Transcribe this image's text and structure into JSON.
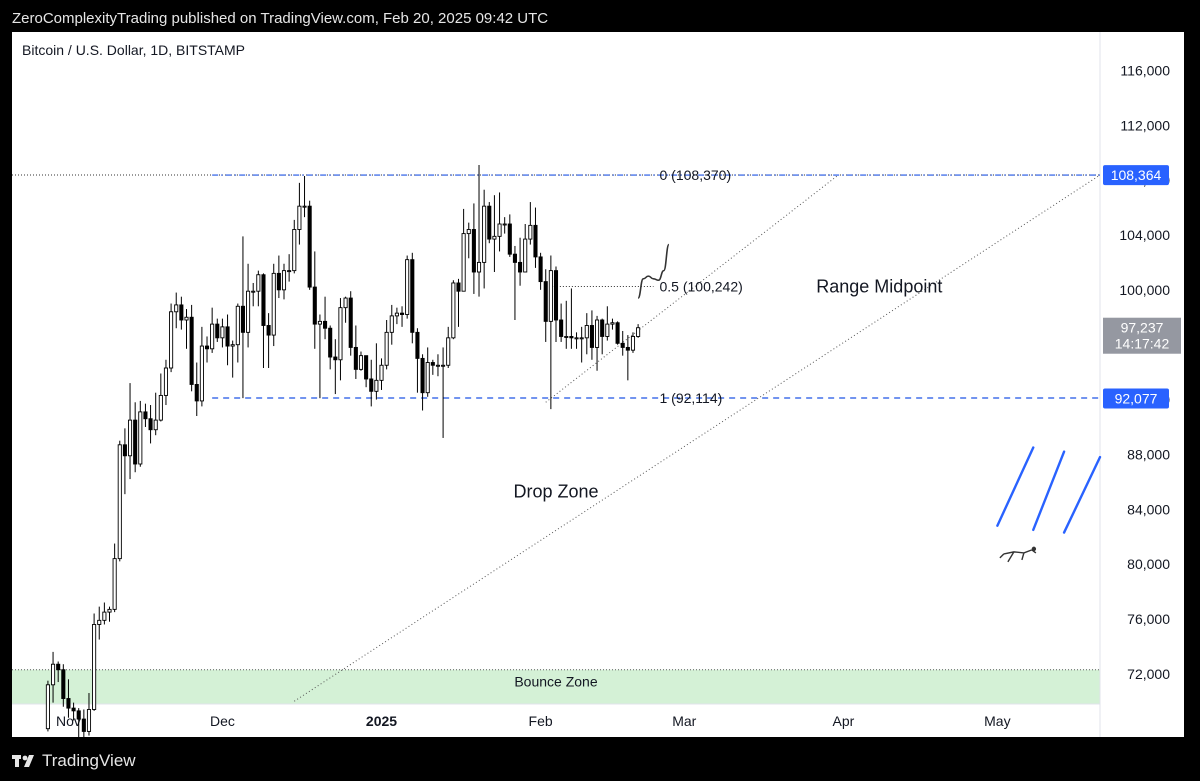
{
  "header": {
    "published_text": "ZeroComplexityTrading published on TradingView.com, Feb 20, 2025 09:42 UTC"
  },
  "footer": {
    "brand": "TradingView"
  },
  "colors": {
    "candle_up_fill": "#ffffff",
    "candle_down_fill": "#000000",
    "fib_line": "#1e53e5",
    "bounce_zone_fill": "#d4f1d6",
    "current_price_badge": "#9598a1",
    "level_badge": "#2962ff"
  },
  "chart_data": {
    "type": "candlestick",
    "title": "Bitcoin / U.S. Dollar, 1D, BITSTAMP",
    "y_axis": {
      "ticks": [
        "116,000",
        "112,000",
        "108,000",
        "104,000",
        "100,000",
        "96,000",
        "92,000",
        "88,000",
        "84,000",
        "80,000",
        "76,000",
        "72,000"
      ],
      "tick_values": [
        116000,
        112000,
        108000,
        104000,
        100000,
        96000,
        92000,
        88000,
        84000,
        80000,
        76000,
        72000
      ],
      "range": [
        69800,
        118800
      ]
    },
    "x_axis": {
      "ticks": [
        {
          "label": "Nov",
          "date": "2024-11-01",
          "bold": false
        },
        {
          "label": "Dec",
          "date": "2024-12-01",
          "bold": false
        },
        {
          "label": "2025",
          "date": "2025-01-01",
          "bold": true
        },
        {
          "label": "Feb",
          "date": "2025-02-01",
          "bold": false
        },
        {
          "label": "Mar",
          "date": "2025-03-01",
          "bold": false
        },
        {
          "label": "Apr",
          "date": "2025-04-01",
          "bold": false
        },
        {
          "label": "May",
          "date": "2025-05-01",
          "bold": false
        }
      ],
      "range": [
        "2024-10-21",
        "2025-05-21"
      ]
    },
    "candles": [
      {
        "d": "2024-10-28",
        "o": 68000,
        "h": 71500,
        "l": 67800,
        "c": 71200
      },
      {
        "d": "2024-10-29",
        "o": 71200,
        "h": 73600,
        "l": 69900,
        "c": 72700
      },
      {
        "d": "2024-10-30",
        "o": 72700,
        "h": 72900,
        "l": 71400,
        "c": 72300
      },
      {
        "d": "2024-10-31",
        "o": 72300,
        "h": 72700,
        "l": 69600,
        "c": 70200
      },
      {
        "d": "2024-11-01",
        "o": 70200,
        "h": 71600,
        "l": 68800,
        "c": 69500
      },
      {
        "d": "2024-11-02",
        "o": 69500,
        "h": 69900,
        "l": 68600,
        "c": 69300
      },
      {
        "d": "2024-11-03",
        "o": 69300,
        "h": 69500,
        "l": 66800,
        "c": 68700
      },
      {
        "d": "2024-11-04",
        "o": 68700,
        "h": 69400,
        "l": 66700,
        "c": 67800
      },
      {
        "d": "2024-11-05",
        "o": 67800,
        "h": 70600,
        "l": 67500,
        "c": 69400
      },
      {
        "d": "2024-11-06",
        "o": 69400,
        "h": 76400,
        "l": 69300,
        "c": 75600
      },
      {
        "d": "2024-11-07",
        "o": 75600,
        "h": 76900,
        "l": 74500,
        "c": 75900
      },
      {
        "d": "2024-11-08",
        "o": 75900,
        "h": 77200,
        "l": 75600,
        "c": 76500
      },
      {
        "d": "2024-11-09",
        "o": 76500,
        "h": 76900,
        "l": 75800,
        "c": 76700
      },
      {
        "d": "2024-11-10",
        "o": 76700,
        "h": 81500,
        "l": 76500,
        "c": 80400
      },
      {
        "d": "2024-11-11",
        "o": 80400,
        "h": 89000,
        "l": 80200,
        "c": 88700
      },
      {
        "d": "2024-11-12",
        "o": 88700,
        "h": 89900,
        "l": 85100,
        "c": 87900
      },
      {
        "d": "2024-11-13",
        "o": 87900,
        "h": 93200,
        "l": 86200,
        "c": 90500
      },
      {
        "d": "2024-11-14",
        "o": 90500,
        "h": 91800,
        "l": 86700,
        "c": 87300
      },
      {
        "d": "2024-11-15",
        "o": 87300,
        "h": 91900,
        "l": 87100,
        "c": 91100
      },
      {
        "d": "2024-11-16",
        "o": 91100,
        "h": 91700,
        "l": 90000,
        "c": 90600
      },
      {
        "d": "2024-11-17",
        "o": 90600,
        "h": 91600,
        "l": 88800,
        "c": 89800
      },
      {
        "d": "2024-11-18",
        "o": 89800,
        "h": 92500,
        "l": 89400,
        "c": 90500
      },
      {
        "d": "2024-11-19",
        "o": 90500,
        "h": 93900,
        "l": 90400,
        "c": 92300
      },
      {
        "d": "2024-11-20",
        "o": 92300,
        "h": 94900,
        "l": 91600,
        "c": 94300
      },
      {
        "d": "2024-11-21",
        "o": 94300,
        "h": 99000,
        "l": 94000,
        "c": 98400
      },
      {
        "d": "2024-11-22",
        "o": 98400,
        "h": 99800,
        "l": 97200,
        "c": 98900
      },
      {
        "d": "2024-11-23",
        "o": 98900,
        "h": 99500,
        "l": 97100,
        "c": 97800
      },
      {
        "d": "2024-11-24",
        "o": 97800,
        "h": 98600,
        "l": 95700,
        "c": 98000
      },
      {
        "d": "2024-11-25",
        "o": 98000,
        "h": 98900,
        "l": 92600,
        "c": 93100
      },
      {
        "d": "2024-11-26",
        "o": 93100,
        "h": 94700,
        "l": 90800,
        "c": 91900
      },
      {
        "d": "2024-11-27",
        "o": 91900,
        "h": 97300,
        "l": 91500,
        "c": 95900
      },
      {
        "d": "2024-11-28",
        "o": 95900,
        "h": 96600,
        "l": 94700,
        "c": 95700
      },
      {
        "d": "2024-11-29",
        "o": 95700,
        "h": 98700,
        "l": 95400,
        "c": 97500
      },
      {
        "d": "2024-11-30",
        "o": 97500,
        "h": 97900,
        "l": 96200,
        "c": 96500
      },
      {
        "d": "2024-12-01",
        "o": 96500,
        "h": 97900,
        "l": 95800,
        "c": 97300
      },
      {
        "d": "2024-12-02",
        "o": 97300,
        "h": 98200,
        "l": 94500,
        "c": 95900
      },
      {
        "d": "2024-12-03",
        "o": 95900,
        "h": 96300,
        "l": 93600,
        "c": 96000
      },
      {
        "d": "2024-12-04",
        "o": 96000,
        "h": 99000,
        "l": 94700,
        "c": 98800
      },
      {
        "d": "2024-12-05",
        "o": 98800,
        "h": 103900,
        "l": 92100,
        "c": 96900
      },
      {
        "d": "2024-12-06",
        "o": 96900,
        "h": 101900,
        "l": 95800,
        "c": 99900
      },
      {
        "d": "2024-12-07",
        "o": 99900,
        "h": 100500,
        "l": 98800,
        "c": 99900
      },
      {
        "d": "2024-12-08",
        "o": 99900,
        "h": 101400,
        "l": 98800,
        "c": 101100
      },
      {
        "d": "2024-12-09",
        "o": 101100,
        "h": 101200,
        "l": 94300,
        "c": 97400
      },
      {
        "d": "2024-12-10",
        "o": 97400,
        "h": 98300,
        "l": 94300,
        "c": 96700
      },
      {
        "d": "2024-12-11",
        "o": 96700,
        "h": 101900,
        "l": 95900,
        "c": 101200
      },
      {
        "d": "2024-12-12",
        "o": 101200,
        "h": 102500,
        "l": 99400,
        "c": 100000
      },
      {
        "d": "2024-12-13",
        "o": 100000,
        "h": 101900,
        "l": 99300,
        "c": 101400
      },
      {
        "d": "2024-12-14",
        "o": 101400,
        "h": 102600,
        "l": 100600,
        "c": 101400
      },
      {
        "d": "2024-12-15",
        "o": 101400,
        "h": 105100,
        "l": 101200,
        "c": 104400
      },
      {
        "d": "2024-12-16",
        "o": 104400,
        "h": 107800,
        "l": 103300,
        "c": 106100
      },
      {
        "d": "2024-12-17",
        "o": 106100,
        "h": 108300,
        "l": 105300,
        "c": 106100
      },
      {
        "d": "2024-12-18",
        "o": 106100,
        "h": 106500,
        "l": 100000,
        "c": 100200
      },
      {
        "d": "2024-12-19",
        "o": 100200,
        "h": 102800,
        "l": 95700,
        "c": 97500
      },
      {
        "d": "2024-12-20",
        "o": 97500,
        "h": 98200,
        "l": 92100,
        "c": 97700
      },
      {
        "d": "2024-12-21",
        "o": 97700,
        "h": 99500,
        "l": 96400,
        "c": 97200
      },
      {
        "d": "2024-12-22",
        "o": 97200,
        "h": 97400,
        "l": 94200,
        "c": 95100
      },
      {
        "d": "2024-12-23",
        "o": 95100,
        "h": 96400,
        "l": 92400,
        "c": 94900
      },
      {
        "d": "2024-12-24",
        "o": 94900,
        "h": 99400,
        "l": 93400,
        "c": 98700
      },
      {
        "d": "2024-12-25",
        "o": 98700,
        "h": 99500,
        "l": 97600,
        "c": 99400
      },
      {
        "d": "2024-12-26",
        "o": 99400,
        "h": 99900,
        "l": 95200,
        "c": 95800
      },
      {
        "d": "2024-12-27",
        "o": 95800,
        "h": 97400,
        "l": 93500,
        "c": 94200
      },
      {
        "d": "2024-12-28",
        "o": 94200,
        "h": 95500,
        "l": 94100,
        "c": 95200
      },
      {
        "d": "2024-12-29",
        "o": 95200,
        "h": 95200,
        "l": 92900,
        "c": 93500
      },
      {
        "d": "2024-12-30",
        "o": 93500,
        "h": 94900,
        "l": 91500,
        "c": 92600
      },
      {
        "d": "2024-12-31",
        "o": 92600,
        "h": 96100,
        "l": 92000,
        "c": 93400
      },
      {
        "d": "2025-01-01",
        "o": 93400,
        "h": 95000,
        "l": 92700,
        "c": 94500
      },
      {
        "d": "2025-01-02",
        "o": 94500,
        "h": 97800,
        "l": 94200,
        "c": 96900
      },
      {
        "d": "2025-01-03",
        "o": 96900,
        "h": 98900,
        "l": 96000,
        "c": 98100
      },
      {
        "d": "2025-01-04",
        "o": 98100,
        "h": 98700,
        "l": 97500,
        "c": 98300
      },
      {
        "d": "2025-01-05",
        "o": 98300,
        "h": 98800,
        "l": 97300,
        "c": 98200
      },
      {
        "d": "2025-01-06",
        "o": 98200,
        "h": 102500,
        "l": 97900,
        "c": 102200
      },
      {
        "d": "2025-01-07",
        "o": 102200,
        "h": 102700,
        "l": 96100,
        "c": 96900
      },
      {
        "d": "2025-01-08",
        "o": 96900,
        "h": 97200,
        "l": 92500,
        "c": 95000
      },
      {
        "d": "2025-01-09",
        "o": 95000,
        "h": 95300,
        "l": 91200,
        "c": 92500
      },
      {
        "d": "2025-01-10",
        "o": 92500,
        "h": 95800,
        "l": 92200,
        "c": 94700
      },
      {
        "d": "2025-01-11",
        "o": 94700,
        "h": 94900,
        "l": 93800,
        "c": 94500
      },
      {
        "d": "2025-01-12",
        "o": 94500,
        "h": 95300,
        "l": 93700,
        "c": 94500
      },
      {
        "d": "2025-01-13",
        "o": 94500,
        "h": 95800,
        "l": 89200,
        "c": 94500
      },
      {
        "d": "2025-01-14",
        "o": 94500,
        "h": 97300,
        "l": 94300,
        "c": 96500
      },
      {
        "d": "2025-01-15",
        "o": 96500,
        "h": 100700,
        "l": 96400,
        "c": 100500
      },
      {
        "d": "2025-01-16",
        "o": 100500,
        "h": 100800,
        "l": 97300,
        "c": 99900
      },
      {
        "d": "2025-01-17",
        "o": 99900,
        "h": 105900,
        "l": 99900,
        "c": 104100
      },
      {
        "d": "2025-01-18",
        "o": 104100,
        "h": 104900,
        "l": 102300,
        "c": 104400
      },
      {
        "d": "2025-01-19",
        "o": 104400,
        "h": 106300,
        "l": 99700,
        "c": 101300
      },
      {
        "d": "2025-01-20",
        "o": 101300,
        "h": 109100,
        "l": 99500,
        "c": 102000
      },
      {
        "d": "2025-01-21",
        "o": 102000,
        "h": 107300,
        "l": 100100,
        "c": 106100
      },
      {
        "d": "2025-01-22",
        "o": 106100,
        "h": 106400,
        "l": 103400,
        "c": 103700
      },
      {
        "d": "2025-01-23",
        "o": 103700,
        "h": 106900,
        "l": 101300,
        "c": 103900
      },
      {
        "d": "2025-01-24",
        "o": 103900,
        "h": 107100,
        "l": 102800,
        "c": 104800
      },
      {
        "d": "2025-01-25",
        "o": 104800,
        "h": 105300,
        "l": 104100,
        "c": 104800
      },
      {
        "d": "2025-01-26",
        "o": 104800,
        "h": 105500,
        "l": 102400,
        "c": 102600
      },
      {
        "d": "2025-01-27",
        "o": 102600,
        "h": 103200,
        "l": 97800,
        "c": 102000
      },
      {
        "d": "2025-01-28",
        "o": 102000,
        "h": 103800,
        "l": 100300,
        "c": 101300
      },
      {
        "d": "2025-01-29",
        "o": 101300,
        "h": 104800,
        "l": 101300,
        "c": 103700
      },
      {
        "d": "2025-01-30",
        "o": 103700,
        "h": 106400,
        "l": 103300,
        "c": 104700
      },
      {
        "d": "2025-01-31",
        "o": 104700,
        "h": 106000,
        "l": 101600,
        "c": 102400
      },
      {
        "d": "2025-02-01",
        "o": 102400,
        "h": 102700,
        "l": 100000,
        "c": 100600
      },
      {
        "d": "2025-02-02",
        "o": 100600,
        "h": 101500,
        "l": 96200,
        "c": 97700
      },
      {
        "d": "2025-02-03",
        "o": 97700,
        "h": 102500,
        "l": 91300,
        "c": 101400
      },
      {
        "d": "2025-02-04",
        "o": 101400,
        "h": 101700,
        "l": 96200,
        "c": 97800
      },
      {
        "d": "2025-02-05",
        "o": 97800,
        "h": 99000,
        "l": 96200,
        "c": 96600
      },
      {
        "d": "2025-02-06",
        "o": 96600,
        "h": 99200,
        "l": 95700,
        "c": 96600
      },
      {
        "d": "2025-02-07",
        "o": 96600,
        "h": 100100,
        "l": 95700,
        "c": 96500
      },
      {
        "d": "2025-02-08",
        "o": 96500,
        "h": 96900,
        "l": 95700,
        "c": 96500
      },
      {
        "d": "2025-02-09",
        "o": 96500,
        "h": 97300,
        "l": 94700,
        "c": 96500
      },
      {
        "d": "2025-02-10",
        "o": 96500,
        "h": 98300,
        "l": 95300,
        "c": 97400
      },
      {
        "d": "2025-02-11",
        "o": 97400,
        "h": 98500,
        "l": 94900,
        "c": 95800
      },
      {
        "d": "2025-02-12",
        "o": 95800,
        "h": 98100,
        "l": 94100,
        "c": 97800
      },
      {
        "d": "2025-02-13",
        "o": 97800,
        "h": 97900,
        "l": 95300,
        "c": 96600
      },
      {
        "d": "2025-02-14",
        "o": 96600,
        "h": 98800,
        "l": 96300,
        "c": 97500
      },
      {
        "d": "2025-02-15",
        "o": 97500,
        "h": 97900,
        "l": 97100,
        "c": 97600
      },
      {
        "d": "2025-02-16",
        "o": 97600,
        "h": 97700,
        "l": 96000,
        "c": 96100
      },
      {
        "d": "2025-02-17",
        "o": 96100,
        "h": 97000,
        "l": 95200,
        "c": 95800
      },
      {
        "d": "2025-02-18",
        "o": 95800,
        "h": 96700,
        "l": 93400,
        "c": 95600
      },
      {
        "d": "2025-02-19",
        "o": 95600,
        "h": 96900,
        "l": 95400,
        "c": 96600
      },
      {
        "d": "2025-02-20",
        "o": 96600,
        "h": 97500,
        "l": 96500,
        "c": 97237
      }
    ],
    "fib_levels": [
      {
        "ratio": "0",
        "price": 108370,
        "label": "0 (108,370)"
      },
      {
        "ratio": "0.5",
        "price": 100242,
        "label": "0.5 (100,242)"
      },
      {
        "ratio": "1",
        "price": 92114,
        "label": "1 (92,114)"
      }
    ],
    "fib_anchor": {
      "start_date": "2024-11-29",
      "end_date": "2025-02-23"
    },
    "ath_dotted_line": {
      "price": 108370
    },
    "price_badges": [
      {
        "price": 108364,
        "text": "108,364",
        "kind": "level"
      },
      {
        "price": 97237,
        "text": "97,237",
        "kind": "current",
        "countdown": "14:17:42"
      },
      {
        "price": 92077,
        "text": "92,077",
        "kind": "level"
      }
    ],
    "trendlines": [
      {
        "from": {
          "date": "2025-02-02",
          "price": 91800
        },
        "to": {
          "date": "2025-03-31",
          "price": 108370
        }
      },
      {
        "from": {
          "date": "2024-12-15",
          "price": 70000
        },
        "to": {
          "date": "2025-05-21",
          "price": 108370
        }
      }
    ],
    "bounce_zone": {
      "label": "Bounce Zone",
      "top": 72300,
      "bottom": 69800
    },
    "annotations": [
      {
        "text": "Range Midpoint",
        "date": "2025-04-08",
        "price": 100242
      },
      {
        "text": "Drop Zone",
        "date": "2025-02-04",
        "price": 85300
      }
    ],
    "projection_path": [
      {
        "date": "2025-02-20",
        "price": 99400
      },
      {
        "date": "2025-02-21",
        "price": 100800
      },
      {
        "date": "2025-02-22",
        "price": 101000
      },
      {
        "date": "2025-02-23",
        "price": 100800
      },
      {
        "date": "2025-02-24",
        "price": 100700
      },
      {
        "date": "2025-02-25",
        "price": 101400
      },
      {
        "date": "2025-02-26",
        "price": 103300
      }
    ],
    "rain_strokes": [
      {
        "from": {
          "date": "2025-05-01",
          "price": 82800
        },
        "to": {
          "date": "2025-05-08",
          "price": 88500
        }
      },
      {
        "from": {
          "date": "2025-05-08",
          "price": 82500
        },
        "to": {
          "date": "2025-05-14",
          "price": 88200
        }
      },
      {
        "from": {
          "date": "2025-05-14",
          "price": 82300
        },
        "to": {
          "date": "2025-05-21",
          "price": 87800
        }
      }
    ],
    "figure_icon": {
      "name": "falling-person-icon",
      "date": "2025-05-05",
      "price": 80600
    }
  }
}
